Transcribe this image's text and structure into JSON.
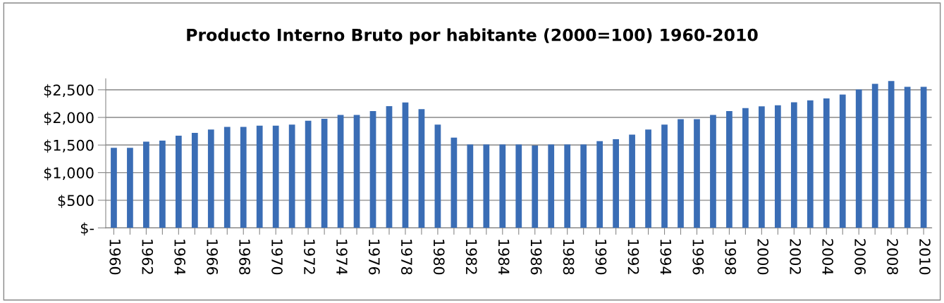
{
  "chart_data": {
    "type": "bar",
    "title": "Producto Interno Bruto por habitante (2000=100) 1960-2010",
    "categories": [
      "1960",
      null,
      "1962",
      null,
      "1964",
      null,
      "1966",
      null,
      "1968",
      null,
      "1970",
      null,
      "1972",
      null,
      "1974",
      null,
      "1976",
      null,
      "1978",
      null,
      "1980",
      null,
      "1982",
      null,
      "1984",
      null,
      "1986",
      null,
      "1988",
      null,
      "1990",
      null,
      "1992",
      null,
      "1994",
      null,
      "1996",
      null,
      "1998",
      null,
      "2000",
      null,
      "2002",
      null,
      "2004",
      null,
      "2006",
      null,
      "2008",
      null,
      "2010"
    ],
    "values": [
      1450,
      1450,
      1560,
      1580,
      1670,
      1720,
      1780,
      1830,
      1830,
      1850,
      1850,
      1870,
      1940,
      1975,
      2045,
      2045,
      2115,
      2205,
      2270,
      2150,
      1870,
      1635,
      1510,
      1510,
      1510,
      1510,
      1490,
      1510,
      1510,
      1510,
      1570,
      1605,
      1690,
      1780,
      1870,
      1970,
      1970,
      2045,
      2115,
      2170,
      2200,
      2220,
      2275,
      2310,
      2345,
      2415,
      2505,
      2610,
      2660,
      2555,
      2555
    ],
    "color": "#3a6db5",
    "ylim": [
      0,
      2700
    ],
    "yticks": [
      {
        "value": 0,
        "label": "$-"
      },
      {
        "value": 500,
        "label": "$500"
      },
      {
        "value": 1000,
        "label": "$1,000"
      },
      {
        "value": 1500,
        "label": "$1,500"
      },
      {
        "value": 2000,
        "label": "$2,000"
      },
      {
        "value": 2500,
        "label": "$2,500"
      }
    ],
    "grid": "y"
  }
}
